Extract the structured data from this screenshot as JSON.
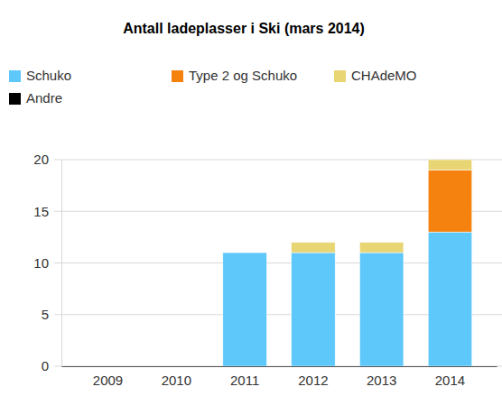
{
  "chart_data": {
    "type": "bar",
    "title": "Antall ladeplasser i Ski (mars 2014)",
    "categories": [
      "2009",
      "2010",
      "2011",
      "2012",
      "2013",
      "2014"
    ],
    "series": [
      {
        "name": "Schuko",
        "color": "#5ec8fa",
        "values": [
          0,
          0,
          11,
          11,
          11,
          13
        ]
      },
      {
        "name": "Type 2 og Schuko",
        "color": "#f5820f",
        "values": [
          0,
          0,
          0,
          0,
          0,
          6
        ]
      },
      {
        "name": "CHAdeMO",
        "color": "#e8d675",
        "values": [
          0,
          0,
          0,
          1,
          1,
          1
        ]
      },
      {
        "name": "Andre",
        "color": "#000000",
        "values": [
          0,
          0,
          0,
          0,
          0,
          0
        ]
      }
    ],
    "ylim": [
      0,
      20
    ],
    "yticks": [
      0,
      5,
      10,
      15,
      20
    ],
    "stacked": true,
    "grid": true,
    "legend": "top-left"
  }
}
